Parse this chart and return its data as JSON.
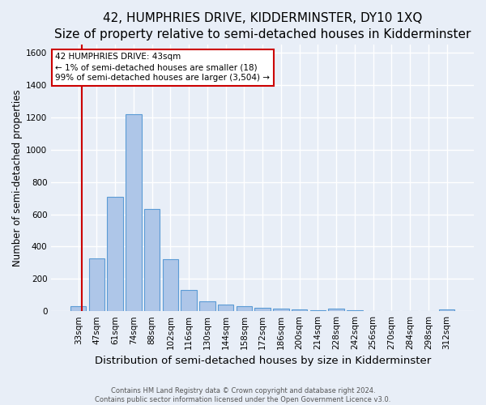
{
  "title": "42, HUMPHRIES DRIVE, KIDDERMINSTER, DY10 1XQ",
  "subtitle": "Size of property relative to semi-detached houses in Kidderminster",
  "xlabel": "Distribution of semi-detached houses by size in Kidderminster",
  "ylabel": "Number of semi-detached properties",
  "footer_line1": "Contains HM Land Registry data © Crown copyright and database right 2024.",
  "footer_line2": "Contains public sector information licensed under the Open Government Licence v3.0.",
  "bar_labels": [
    "33sqm",
    "47sqm",
    "61sqm",
    "74sqm",
    "88sqm",
    "102sqm",
    "116sqm",
    "130sqm",
    "144sqm",
    "158sqm",
    "172sqm",
    "186sqm",
    "200sqm",
    "214sqm",
    "228sqm",
    "242sqm",
    "256sqm",
    "270sqm",
    "284sqm",
    "298sqm",
    "312sqm"
  ],
  "bar_values": [
    30,
    325,
    710,
    1220,
    635,
    320,
    130,
    60,
    40,
    30,
    22,
    15,
    10,
    5,
    18,
    5,
    2,
    0,
    0,
    0,
    10
  ],
  "bar_color": "#aec6e8",
  "bar_edge_color": "#5b9bd5",
  "property_label": "42 HUMPHRIES DRIVE: 43sqm",
  "annotation_line1": "← 1% of semi-detached houses are smaller (18)",
  "annotation_line2": "99% of semi-detached houses are larger (3,504) →",
  "vline_color": "#cc0000",
  "ylim": [
    0,
    1650
  ],
  "yticks": [
    0,
    200,
    400,
    600,
    800,
    1000,
    1200,
    1400,
    1600
  ],
  "bg_color": "#e8eef7",
  "grid_color": "#ffffff",
  "title_fontsize": 11,
  "xlabel_fontsize": 9.5,
  "ylabel_fontsize": 8.5,
  "tick_fontsize": 7.5,
  "annotation_fontsize": 7.5,
  "footer_fontsize": 6.0
}
